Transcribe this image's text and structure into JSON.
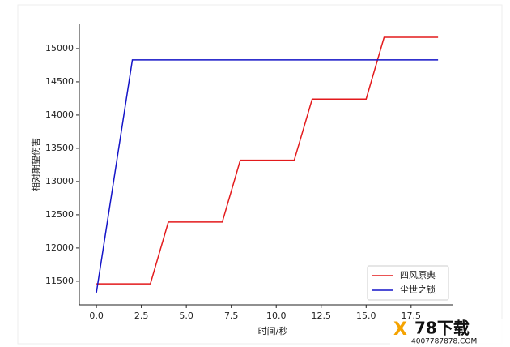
{
  "chart_data": {
    "type": "line",
    "xlabel": "时间/秒",
    "ylabel": "相对期望伤害",
    "series": [
      {
        "name": "四风原典",
        "color": "#e31a1c",
        "x": [
          0,
          3,
          4,
          7,
          8,
          11,
          12,
          15,
          16,
          19
        ],
        "values": [
          11460,
          11460,
          12390,
          12390,
          13320,
          13320,
          14240,
          14240,
          15170,
          15170
        ]
      },
      {
        "name": "尘世之锁",
        "color": "#1414c8",
        "x": [
          0,
          2,
          19
        ],
        "values": [
          11330,
          14830,
          14830
        ]
      }
    ],
    "xlim": [
      -0.95,
      19.85
    ],
    "ylim": [
      11145,
      15365
    ],
    "xticks": [
      {
        "value": 0,
        "label": "0.0"
      },
      {
        "value": 2.5,
        "label": "2.5"
      },
      {
        "value": 5,
        "label": "5.0"
      },
      {
        "value": 7.5,
        "label": "7.5"
      },
      {
        "value": 10,
        "label": "10.0"
      },
      {
        "value": 12.5,
        "label": "12.5"
      },
      {
        "value": 15,
        "label": "15.0"
      },
      {
        "value": 17.5,
        "label": "17.5"
      }
    ],
    "yticks": [
      11500,
      12000,
      12500,
      13000,
      13500,
      14000,
      14500,
      15000
    ],
    "legend": "lower right",
    "grid": false,
    "watermark": "78下载",
    "watermark_url": "4007787878.COM"
  }
}
